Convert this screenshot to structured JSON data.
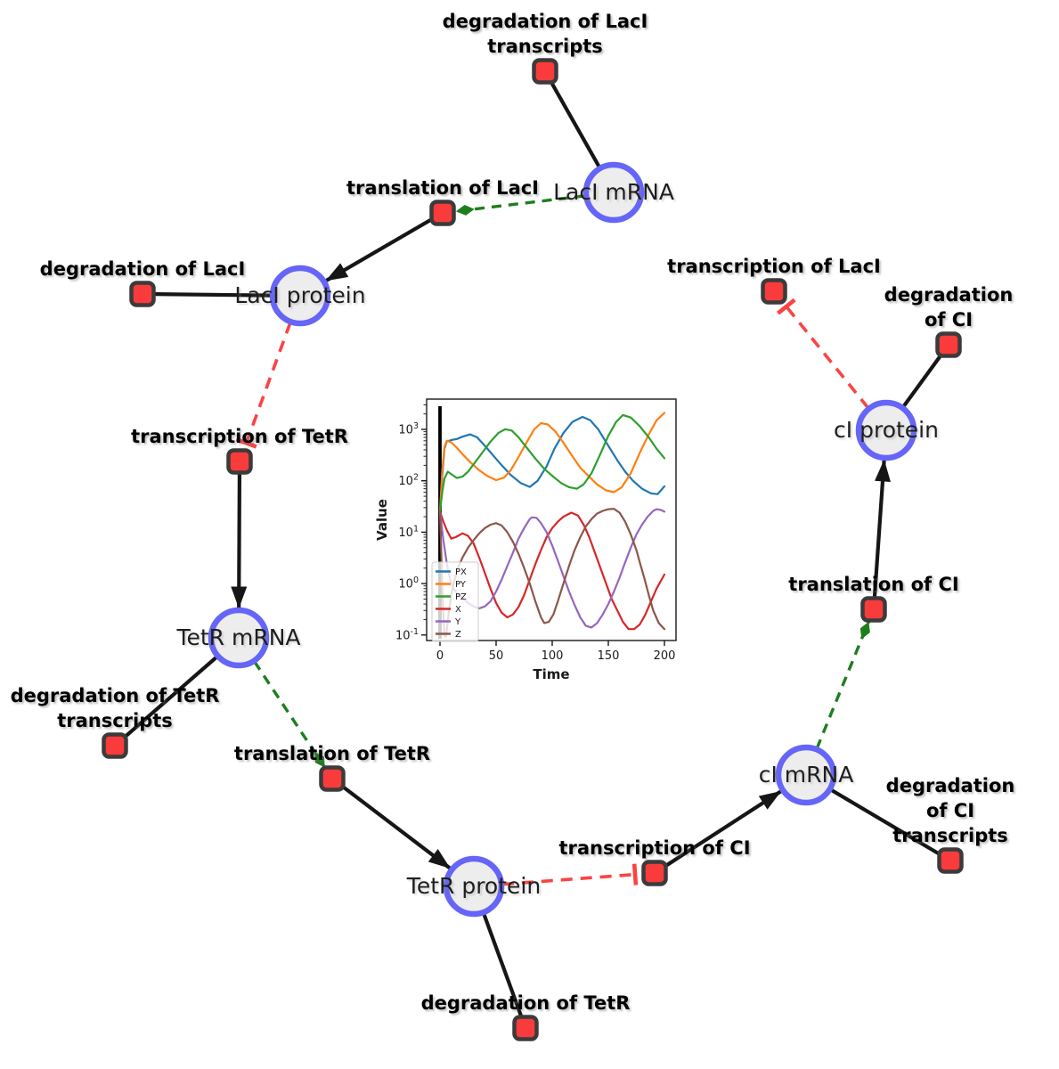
{
  "diagram": {
    "species_nodes": [
      {
        "id": "laci_mrna",
        "label": "LacI mRNA"
      },
      {
        "id": "laci_protein",
        "label": "LacI protein"
      },
      {
        "id": "tetr_mrna",
        "label": "TetR mRNA"
      },
      {
        "id": "tetr_protein",
        "label": "TetR protein"
      },
      {
        "id": "ci_mrna",
        "label": "cI mRNA"
      },
      {
        "id": "ci_protein",
        "label": "cI protein"
      }
    ],
    "reaction_nodes": [
      {
        "id": "deg_laci_tx",
        "label": "degradation of LacI\ntranscripts"
      },
      {
        "id": "tl_laci",
        "label": "translation of LacI"
      },
      {
        "id": "deg_laci",
        "label": "degradation of LacI"
      },
      {
        "id": "tc_laci",
        "label": "transcription of LacI"
      },
      {
        "id": "deg_ci",
        "label": "degradation of CI"
      },
      {
        "id": "tc_tetr",
        "label": "transcription of TetR"
      },
      {
        "id": "tl_ci",
        "label": "translation of CI"
      },
      {
        "id": "deg_tetr_tx",
        "label": "degradation of TetR\ntranscripts"
      },
      {
        "id": "tl_tetr",
        "label": "translation of TetR"
      },
      {
        "id": "tc_ci",
        "label": "transcription of CI"
      },
      {
        "id": "deg_ci_tx",
        "label": "degradation of CI\ntranscripts"
      },
      {
        "id": "deg_tetr",
        "label": "degradation of TetR"
      }
    ],
    "colors": {
      "species_fill": "#ededed",
      "species_border": "#6565f8",
      "reaction_fill": "#f93b3b",
      "reaction_border": "#3b3b3b",
      "reaction_edge": "#161616",
      "modifier_edge": "#1e7e1e",
      "inhibition_edge": "#fb4343"
    }
  },
  "chart_data": {
    "type": "line",
    "title": "",
    "xlabel": "Time",
    "ylabel": "Value",
    "x_ticks": [
      0,
      50,
      100,
      150,
      200
    ],
    "y_tick_exponents": [
      3,
      2,
      1,
      0,
      -1
    ],
    "y_scale": "log",
    "xlim": [
      -12,
      210
    ],
    "ylim_exponents": [
      -1.1,
      3.59
    ],
    "grid": false,
    "legend_position": "lower left",
    "vline_x": 0,
    "series": [
      {
        "name": "PX",
        "color": "#1f77b4",
        "points": [
          [
            0,
            25
          ],
          [
            2,
            120
          ],
          [
            4,
            420
          ],
          [
            6,
            580
          ],
          [
            10,
            620
          ],
          [
            15,
            650
          ],
          [
            20,
            720
          ],
          [
            27,
            800
          ],
          [
            33,
            700
          ],
          [
            40,
            480
          ],
          [
            48,
            300
          ],
          [
            55,
            200
          ],
          [
            63,
            130
          ],
          [
            72,
            90
          ],
          [
            80,
            76
          ],
          [
            87,
            100
          ],
          [
            95,
            190
          ],
          [
            102,
            420
          ],
          [
            110,
            850
          ],
          [
            118,
            1400
          ],
          [
            127,
            1750
          ],
          [
            134,
            1500
          ],
          [
            141,
            1000
          ],
          [
            150,
            480
          ],
          [
            158,
            250
          ],
          [
            165,
            150
          ],
          [
            172,
            100
          ],
          [
            180,
            70
          ],
          [
            188,
            57
          ],
          [
            194,
            55
          ],
          [
            200,
            78
          ]
        ]
      },
      {
        "name": "PY",
        "color": "#ff7f0e",
        "points": [
          [
            0,
            25
          ],
          [
            2,
            150
          ],
          [
            4,
            450
          ],
          [
            6,
            600
          ],
          [
            10,
            560
          ],
          [
            15,
            440
          ],
          [
            20,
            330
          ],
          [
            27,
            230
          ],
          [
            35,
            160
          ],
          [
            42,
            125
          ],
          [
            50,
            103
          ],
          [
            57,
            115
          ],
          [
            63,
            160
          ],
          [
            70,
            290
          ],
          [
            78,
            600
          ],
          [
            84,
            1000
          ],
          [
            90,
            1320
          ],
          [
            96,
            1250
          ],
          [
            103,
            900
          ],
          [
            110,
            550
          ],
          [
            118,
            300
          ],
          [
            125,
            180
          ],
          [
            133,
            120
          ],
          [
            140,
            85
          ],
          [
            148,
            65
          ],
          [
            155,
            60
          ],
          [
            162,
            75
          ],
          [
            170,
            140
          ],
          [
            178,
            350
          ],
          [
            186,
            800
          ],
          [
            193,
            1500
          ],
          [
            200,
            2100
          ]
        ]
      },
      {
        "name": "PZ",
        "color": "#2ca02c",
        "points": [
          [
            0,
            25
          ],
          [
            2,
            60
          ],
          [
            4,
            110
          ],
          [
            7,
            150
          ],
          [
            11,
            130
          ],
          [
            15,
            113
          ],
          [
            20,
            120
          ],
          [
            25,
            150
          ],
          [
            30,
            210
          ],
          [
            38,
            360
          ],
          [
            45,
            580
          ],
          [
            52,
            850
          ],
          [
            58,
            1010
          ],
          [
            64,
            950
          ],
          [
            70,
            700
          ],
          [
            78,
            420
          ],
          [
            85,
            270
          ],
          [
            93,
            170
          ],
          [
            100,
            125
          ],
          [
            108,
            90
          ],
          [
            115,
            75
          ],
          [
            122,
            70
          ],
          [
            128,
            85
          ],
          [
            135,
            140
          ],
          [
            142,
            300
          ],
          [
            150,
            750
          ],
          [
            157,
            1400
          ],
          [
            163,
            1900
          ],
          [
            170,
            1700
          ],
          [
            178,
            1150
          ],
          [
            186,
            700
          ],
          [
            193,
            420
          ],
          [
            200,
            275
          ]
        ]
      },
      {
        "name": "X",
        "color": "#d62728",
        "points": [
          [
            0,
            25
          ],
          [
            3,
            16
          ],
          [
            6,
            11
          ],
          [
            10,
            7.5
          ],
          [
            14,
            8
          ],
          [
            20,
            9.5
          ],
          [
            25,
            8.5
          ],
          [
            30,
            6
          ],
          [
            35,
            3.2
          ],
          [
            40,
            1.6
          ],
          [
            45,
            0.8
          ],
          [
            50,
            0.42
          ],
          [
            55,
            0.27
          ],
          [
            60,
            0.22
          ],
          [
            65,
            0.25
          ],
          [
            70,
            0.35
          ],
          [
            75,
            0.6
          ],
          [
            80,
            1.2
          ],
          [
            85,
            2.4
          ],
          [
            90,
            4.5
          ],
          [
            95,
            8
          ],
          [
            100,
            12
          ],
          [
            105,
            16
          ],
          [
            110,
            20
          ],
          [
            117,
            24
          ],
          [
            123,
            21
          ],
          [
            128,
            14
          ],
          [
            133,
            8
          ],
          [
            138,
            4
          ],
          [
            143,
            2
          ],
          [
            148,
            1
          ],
          [
            153,
            0.5
          ],
          [
            158,
            0.3
          ],
          [
            163,
            0.18
          ],
          [
            168,
            0.13
          ],
          [
            173,
            0.13
          ],
          [
            178,
            0.16
          ],
          [
            183,
            0.25
          ],
          [
            188,
            0.45
          ],
          [
            193,
            0.8
          ],
          [
            200,
            1.5
          ]
        ]
      },
      {
        "name": "Y",
        "color": "#9467bd",
        "points": [
          [
            0,
            25
          ],
          [
            3,
            7
          ],
          [
            6,
            2.5
          ],
          [
            9,
            1.2
          ],
          [
            12,
            0.8
          ],
          [
            16,
            0.62
          ],
          [
            20,
            0.52
          ],
          [
            25,
            0.42
          ],
          [
            30,
            0.36
          ],
          [
            35,
            0.33
          ],
          [
            40,
            0.36
          ],
          [
            45,
            0.45
          ],
          [
            50,
            0.7
          ],
          [
            55,
            1.2
          ],
          [
            60,
            2.2
          ],
          [
            65,
            4
          ],
          [
            70,
            7.5
          ],
          [
            75,
            12
          ],
          [
            80,
            18
          ],
          [
            82,
            19.5
          ],
          [
            86,
            19
          ],
          [
            90,
            15
          ],
          [
            95,
            10
          ],
          [
            100,
            5.5
          ],
          [
            105,
            2.8
          ],
          [
            110,
            1.4
          ],
          [
            115,
            0.7
          ],
          [
            120,
            0.38
          ],
          [
            125,
            0.22
          ],
          [
            130,
            0.15
          ],
          [
            135,
            0.14
          ],
          [
            140,
            0.17
          ],
          [
            145,
            0.25
          ],
          [
            150,
            0.4
          ],
          [
            155,
            0.7
          ],
          [
            160,
            1.3
          ],
          [
            165,
            2.6
          ],
          [
            170,
            5
          ],
          [
            175,
            9
          ],
          [
            180,
            14
          ],
          [
            185,
            20
          ],
          [
            190,
            26
          ],
          [
            193,
            28
          ],
          [
            197,
            27
          ],
          [
            200,
            25
          ]
        ]
      },
      {
        "name": "Z",
        "color": "#8c564b",
        "points": [
          [
            0,
            25
          ],
          [
            1,
            5
          ],
          [
            2,
            0.9
          ],
          [
            3,
            0.25
          ],
          [
            4,
            0.1
          ],
          [
            5,
            0.09
          ],
          [
            6,
            0.12
          ],
          [
            8,
            0.3
          ],
          [
            10,
            0.6
          ],
          [
            13,
            1.2
          ],
          [
            16,
            2
          ],
          [
            20,
            3.2
          ],
          [
            25,
            5
          ],
          [
            30,
            7
          ],
          [
            35,
            9.5
          ],
          [
            40,
            12
          ],
          [
            45,
            14
          ],
          [
            50,
            15
          ],
          [
            55,
            13.5
          ],
          [
            60,
            10
          ],
          [
            65,
            6.5
          ],
          [
            70,
            3.8
          ],
          [
            75,
            2
          ],
          [
            80,
            1
          ],
          [
            85,
            0.45
          ],
          [
            90,
            0.22
          ],
          [
            93,
            0.17
          ],
          [
            97,
            0.18
          ],
          [
            101,
            0.25
          ],
          [
            105,
            0.45
          ],
          [
            110,
            1
          ],
          [
            115,
            2.2
          ],
          [
            120,
            4.5
          ],
          [
            125,
            8
          ],
          [
            130,
            13
          ],
          [
            135,
            18
          ],
          [
            140,
            23
          ],
          [
            145,
            26
          ],
          [
            150,
            28
          ],
          [
            155,
            28.5
          ],
          [
            160,
            24
          ],
          [
            165,
            16
          ],
          [
            170,
            9
          ],
          [
            175,
            4.5
          ],
          [
            178,
            2.6
          ],
          [
            182,
            1.3
          ],
          [
            186,
            0.6
          ],
          [
            190,
            0.3
          ],
          [
            195,
            0.17
          ],
          [
            200,
            0.13
          ]
        ]
      }
    ]
  }
}
